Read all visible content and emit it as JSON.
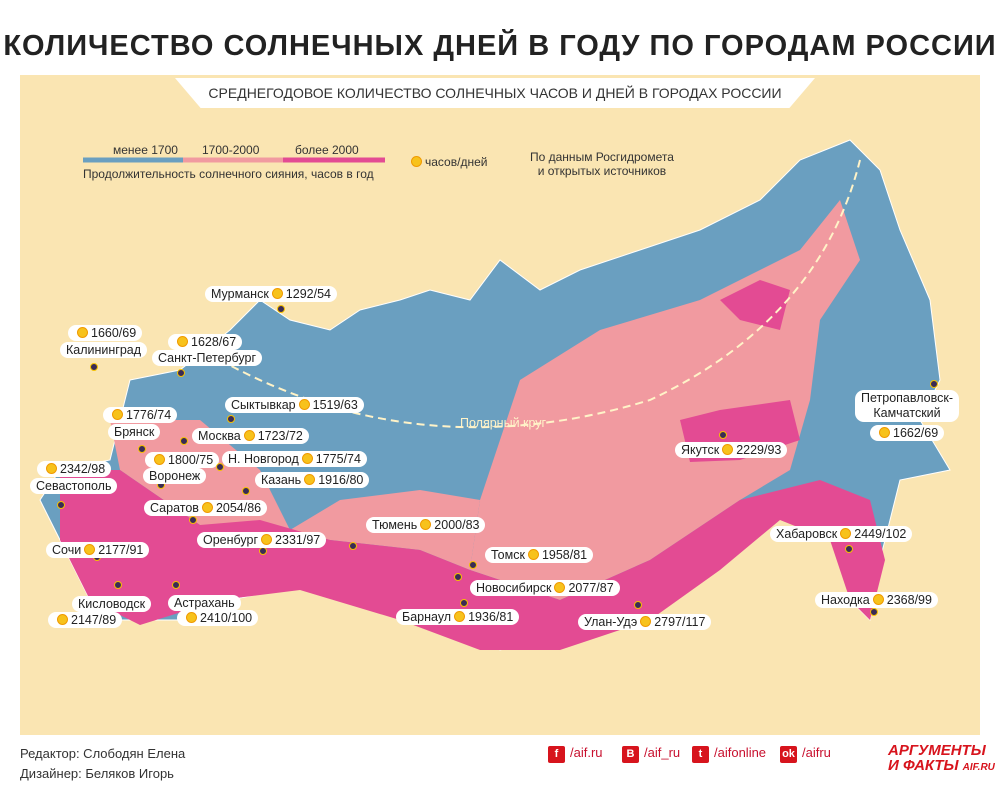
{
  "title": "КОЛИЧЕСТВО СОЛНЕЧНЫХ ДНЕЙ В ГОДУ ПО ГОРОДАМ РОССИИ",
  "subtitle": "СРЕДНЕГОДОВОЕ КОЛИЧЕСТВО СОЛНЕЧНЫХ ЧАСОВ И ДНЕЙ В ГОРОДАХ РОССИИ",
  "legend": {
    "ranges": [
      {
        "label": "менее 1700",
        "color": "#6a9fc0"
      },
      {
        "label": "1700-2000",
        "color": "#f19aa0"
      },
      {
        "label": "более 2000",
        "color": "#e34b93"
      }
    ],
    "caption": "Продолжительность солнечного сияния, часов в год",
    "sun_label": "часов/дней",
    "source": "По данным Росгидромета",
    "source2": "и открытых источников"
  },
  "polar_circle": "Полярный круг",
  "cities": [
    {
      "name": "Мурманск",
      "value": "1292/54"
    },
    {
      "name": "Калининград",
      "value": "1660/69"
    },
    {
      "name": "Санкт-Петербург",
      "value": "1628/67"
    },
    {
      "name": "Сыктывкар",
      "value": "1519/63"
    },
    {
      "name": "Брянск",
      "value": "1776/74"
    },
    {
      "name": "Москва",
      "value": "1723/72"
    },
    {
      "name": "Воронеж",
      "value": "1800/75"
    },
    {
      "name": "Н. Новгород",
      "value": "1775/74"
    },
    {
      "name": "Казань",
      "value": "1916/80"
    },
    {
      "name": "Севастополь",
      "value": "2342/98"
    },
    {
      "name": "Саратов",
      "value": "2054/86"
    },
    {
      "name": "Оренбург",
      "value": "2331/97"
    },
    {
      "name": "Тюмень",
      "value": "2000/83"
    },
    {
      "name": "Сочи",
      "value": "2177/91"
    },
    {
      "name": "Томск",
      "value": "1958/81"
    },
    {
      "name": "Новосибирск",
      "value": "2077/87"
    },
    {
      "name": "Кисловодск",
      "value": "2147/89"
    },
    {
      "name": "Астрахань",
      "value": "2410/100"
    },
    {
      "name": "Барнаул",
      "value": "1936/81"
    },
    {
      "name": "Улан-Удэ",
      "value": "2797/117"
    },
    {
      "name": "Якутск",
      "value": "2229/93"
    },
    {
      "name": "Хабаровск",
      "value": "2449/102"
    },
    {
      "name": "Находка",
      "value": "2368/99"
    },
    {
      "name": "Петропавловск-",
      "name2": "Камчатский",
      "value": "1662/69"
    }
  ],
  "footer": {
    "editor": "Редактор: Слободян Елена",
    "designer": "Дизайнер: Беляков Игорь"
  },
  "social": [
    {
      "icon": "facebook-icon",
      "glyph": "f",
      "label": "/aif.ru"
    },
    {
      "icon": "vk-icon",
      "glyph": "B",
      "label": "/aif_ru"
    },
    {
      "icon": "twitter-icon",
      "glyph": "t",
      "label": "/aifonline"
    },
    {
      "icon": "odnoklassniki-icon",
      "glyph": "ok",
      "label": "/aifru"
    }
  ],
  "logo": {
    "line1": "АРГУМЕНТЫ",
    "line2": "И ФАКТЫ",
    "site": "AIF.RU"
  }
}
